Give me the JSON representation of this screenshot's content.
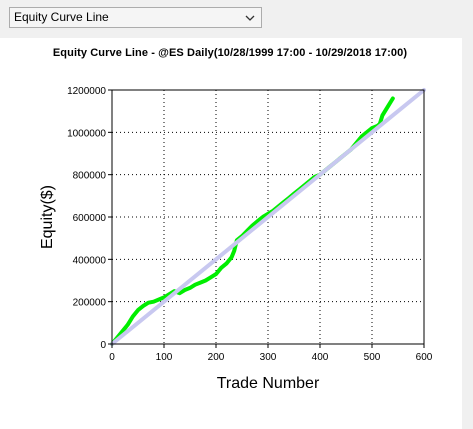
{
  "dropdown": {
    "selected": "Equity Curve Line",
    "options": [
      "Equity Curve Line"
    ]
  },
  "icons": {
    "dropdown": "chevron-down-icon"
  },
  "chart_data": {
    "type": "line",
    "title": "Equity Curve Line - @ES Daily(10/28/1999 17:00 - 10/29/2018 17:00)",
    "xlabel": "Trade Number",
    "ylabel": "Equity($)",
    "xlim": [
      0,
      600
    ],
    "ylim": [
      0,
      1200000
    ],
    "xticks": [
      "0",
      "100",
      "200",
      "300",
      "400",
      "500",
      "600"
    ],
    "yticks": [
      "0",
      "200000",
      "400000",
      "600000",
      "800000",
      "1000000",
      "1200000"
    ],
    "grid": true,
    "colors": {
      "equity": "#00ee00",
      "trend": "#c8c8f0",
      "grid": "#000000"
    },
    "series": [
      {
        "role": "equity",
        "x": [
          0,
          10,
          20,
          30,
          40,
          50,
          60,
          70,
          80,
          100,
          120,
          130,
          140,
          150,
          160,
          170,
          180,
          190,
          200,
          210,
          220,
          230,
          235,
          240,
          250,
          260,
          270,
          280,
          290,
          300,
          310,
          320,
          330,
          340,
          350,
          360,
          370,
          380,
          390,
          400,
          410,
          420,
          430,
          440,
          450,
          460,
          470,
          480,
          490,
          500,
          510,
          515,
          520,
          530,
          540
        ],
        "y": [
          0,
          30000,
          60000,
          90000,
          130000,
          160000,
          180000,
          195000,
          200000,
          220000,
          250000,
          240000,
          255000,
          265000,
          280000,
          290000,
          300000,
          315000,
          330000,
          360000,
          380000,
          410000,
          440000,
          490000,
          510000,
          535000,
          560000,
          580000,
          600000,
          615000,
          630000,
          650000,
          670000,
          690000,
          710000,
          730000,
          750000,
          770000,
          790000,
          800000,
          820000,
          840000,
          860000,
          880000,
          900000,
          920000,
          950000,
          980000,
          1000000,
          1020000,
          1030000,
          1040000,
          1080000,
          1120000,
          1160000
        ]
      },
      {
        "role": "trend",
        "x": [
          0,
          600
        ],
        "y": [
          0,
          1200000
        ]
      }
    ]
  }
}
